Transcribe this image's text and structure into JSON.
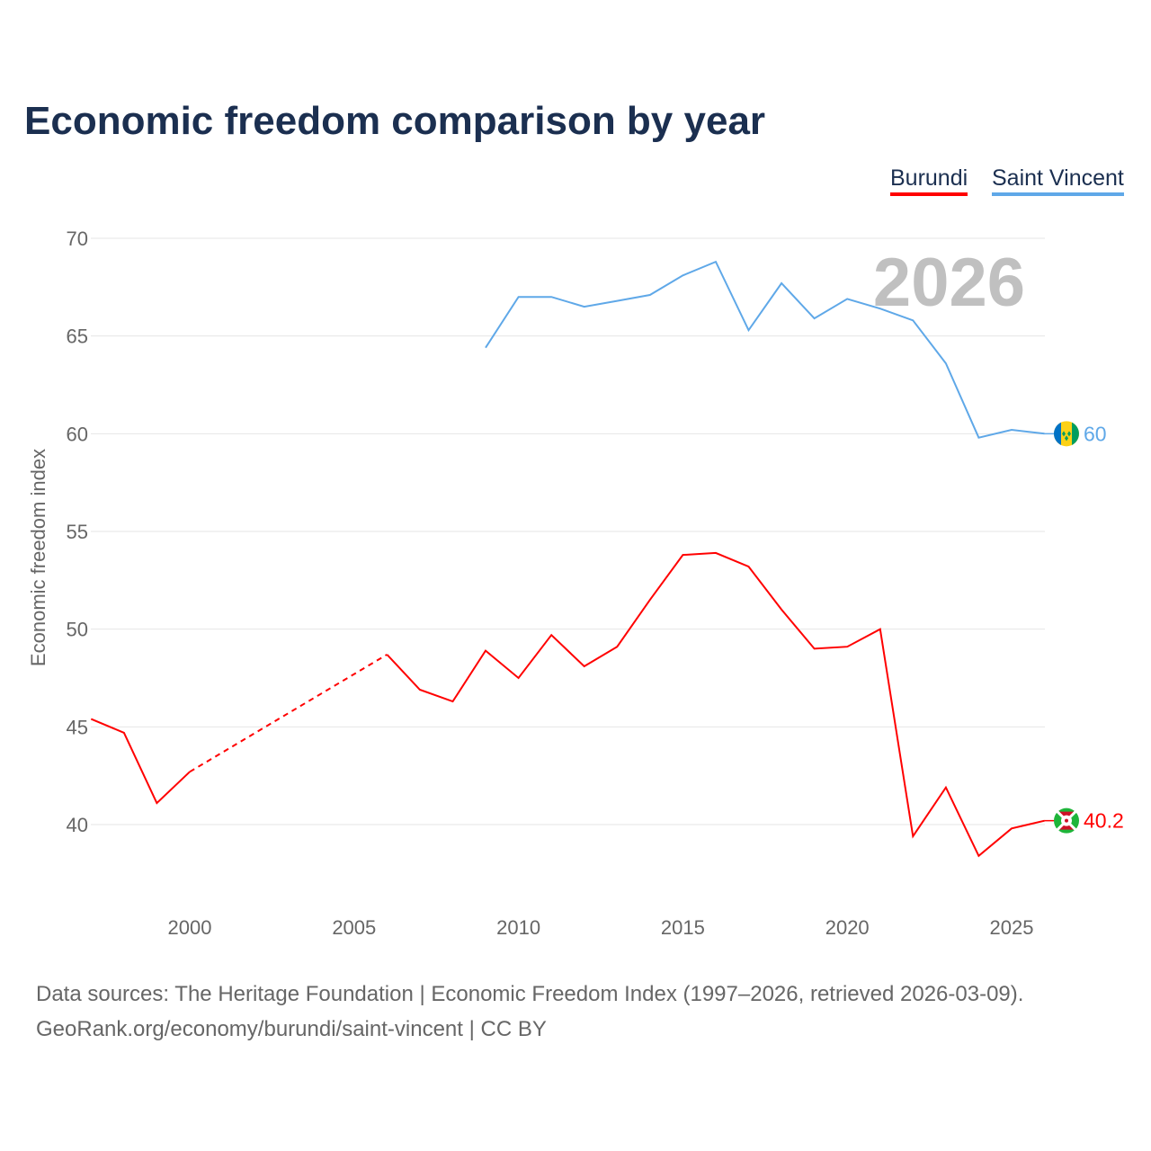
{
  "chart_data": {
    "type": "line",
    "title": "Economic freedom comparison by year",
    "xlabel": "",
    "ylabel": "Economic freedom index",
    "xlim": [
      1997,
      2026
    ],
    "ylim": [
      36.2,
      70
    ],
    "yticks": [
      40,
      45,
      50,
      55,
      60,
      65,
      70
    ],
    "xticks": [
      2000,
      2005,
      2010,
      2015,
      2020,
      2025
    ],
    "grid": true,
    "legend_position": "top-right",
    "watermark_year": "2026",
    "series": [
      {
        "name": "Burundi",
        "color": "#ff0000",
        "end_label": "40.2",
        "x": [
          1997,
          1998,
          1999,
          2000,
          2006,
          2007,
          2008,
          2009,
          2010,
          2011,
          2012,
          2013,
          2014,
          2015,
          2016,
          2017,
          2018,
          2019,
          2020,
          2021,
          2022,
          2023,
          2024,
          2025,
          2026
        ],
        "values": [
          45.4,
          44.7,
          41.1,
          42.7,
          48.7,
          46.9,
          46.3,
          48.9,
          47.5,
          49.7,
          48.1,
          49.1,
          51.5,
          53.8,
          53.9,
          53.2,
          51.0,
          49.0,
          49.1,
          50.0,
          39.4,
          41.9,
          38.4,
          39.8,
          40.2
        ],
        "gap_dashed_between": [
          2000,
          2006
        ]
      },
      {
        "name": "Saint Vincent",
        "color": "#5fa8e8",
        "end_label": "60",
        "x": [
          2009,
          2010,
          2011,
          2012,
          2013,
          2014,
          2015,
          2016,
          2017,
          2018,
          2019,
          2020,
          2021,
          2022,
          2023,
          2024,
          2025,
          2026
        ],
        "values": [
          64.4,
          67.0,
          67.0,
          66.5,
          66.8,
          67.1,
          68.1,
          68.8,
          65.3,
          67.7,
          65.9,
          66.9,
          66.4,
          65.8,
          63.6,
          59.8,
          60.2,
          60.0
        ]
      }
    ]
  },
  "footer": {
    "line1": "Data sources: The Heritage Foundation | Economic Freedom Index (1997–2026, retrieved 2026-03-09).",
    "line2": "GeoRank.org/economy/burundi/saint-vincent | CC BY"
  }
}
